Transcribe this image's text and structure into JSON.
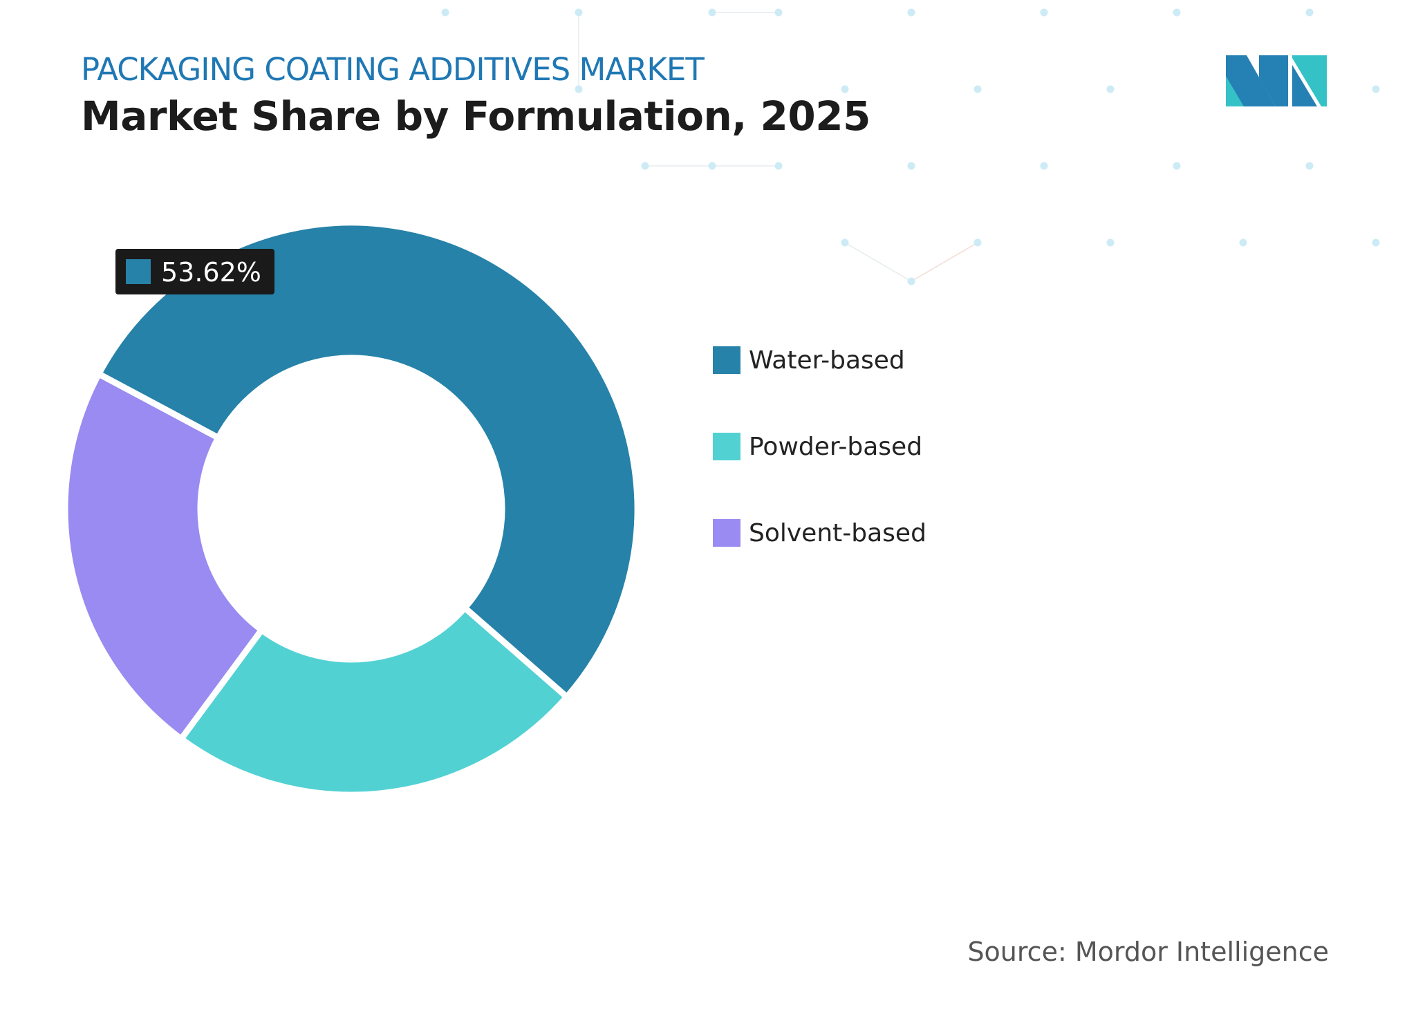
{
  "header": {
    "kicker": "PACKAGING COATING ADDITIVES MARKET",
    "title": "Market Share by Formulation, 2025"
  },
  "colors": {
    "kicker": "#1f78b4",
    "water_based": "#2682a8",
    "powder_based": "#52d1d3",
    "solvent_based": "#998bf1",
    "label_box": "#1a1a1a",
    "logo_blue": "#2580b3",
    "logo_teal": "#35c2c6"
  },
  "logo": {
    "icon": "mordor-intelligence-logo"
  },
  "chart_data": {
    "type": "pie",
    "style": "donut",
    "categories": [
      "Water-based",
      "Powder-based",
      "Solvent-based"
    ],
    "values": [
      53.62,
      23.7,
      22.68
    ],
    "colors": [
      "#2682a8",
      "#52d1d3",
      "#998bf1"
    ],
    "data_labels": [
      {
        "category": "Water-based",
        "text": "53.62%"
      }
    ],
    "legend": {
      "position": "right",
      "entries": [
        "Water-based",
        "Powder-based",
        "Solvent-based"
      ]
    }
  },
  "footer": {
    "source": "Source: Mordor Intelligence"
  }
}
